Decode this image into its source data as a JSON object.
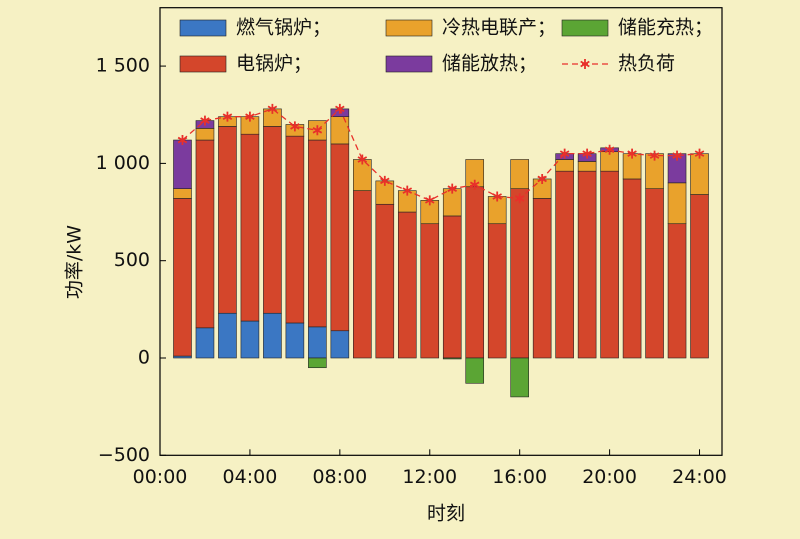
{
  "chart_data": {
    "type": "bar",
    "stacked": true,
    "x_label": "时刻",
    "y_label": "功率/kW",
    "x": [
      1,
      2,
      3,
      4,
      5,
      6,
      7,
      8,
      9,
      10,
      11,
      12,
      13,
      14,
      15,
      16,
      17,
      18,
      19,
      20,
      21,
      22,
      23,
      24
    ],
    "xlim": [
      0,
      25
    ],
    "xticks": [
      {
        "value": 0,
        "label": "00:00"
      },
      {
        "value": 4,
        "label": "04:00"
      },
      {
        "value": 8,
        "label": "08:00"
      },
      {
        "value": 12,
        "label": "12:00"
      },
      {
        "value": 16,
        "label": "16:00"
      },
      {
        "value": 20,
        "label": "20:00"
      },
      {
        "value": 24,
        "label": "24:00"
      }
    ],
    "ylim": [
      -500,
      1800
    ],
    "yticks": [
      {
        "value": -500,
        "label": "−500"
      },
      0,
      500,
      {
        "value": 1000,
        "label": "1 000"
      },
      {
        "value": 1500,
        "label": "1 500"
      }
    ],
    "series": [
      {
        "name": "燃气锅炉；",
        "color": "#3b77c3",
        "values": [
          10,
          155,
          230,
          190,
          230,
          180,
          160,
          140,
          0,
          0,
          0,
          0,
          0,
          0,
          0,
          0,
          0,
          0,
          0,
          0,
          0,
          0,
          0,
          0
        ]
      },
      {
        "name": "电锅炉；",
        "color": "#d4462b",
        "values": [
          810,
          965,
          960,
          960,
          960,
          960,
          960,
          960,
          860,
          790,
          750,
          690,
          730,
          880,
          690,
          870,
          820,
          960,
          960,
          960,
          920,
          870,
          690,
          840
        ]
      },
      {
        "name": "冷热电联产；",
        "color": "#e9a22c",
        "values": [
          50,
          60,
          50,
          90,
          90,
          60,
          100,
          140,
          160,
          120,
          110,
          120,
          140,
          140,
          140,
          150,
          100,
          60,
          50,
          100,
          130,
          180,
          210,
          210
        ]
      },
      {
        "name": "储能放热；",
        "color": "#7b3b9e",
        "values": [
          250,
          40,
          0,
          0,
          0,
          0,
          0,
          40,
          0,
          0,
          0,
          0,
          0,
          0,
          0,
          0,
          0,
          30,
          40,
          20,
          0,
          0,
          150,
          0
        ]
      },
      {
        "name": "储能充热；",
        "color": "#5ba534",
        "values": [
          0,
          0,
          0,
          0,
          0,
          0,
          -50,
          0,
          0,
          0,
          0,
          0,
          -5,
          -130,
          0,
          -200,
          0,
          0,
          0,
          0,
          0,
          0,
          0,
          0
        ]
      },
      {
        "name": "热负荷",
        "type": "line",
        "color": "#e8302a",
        "values": [
          1120,
          1220,
          1240,
          1240,
          1280,
          1190,
          1170,
          1280,
          1020,
          910,
          860,
          810,
          870,
          890,
          830,
          820,
          920,
          1050,
          1050,
          1070,
          1050,
          1040,
          1040,
          1050
        ]
      }
    ]
  }
}
